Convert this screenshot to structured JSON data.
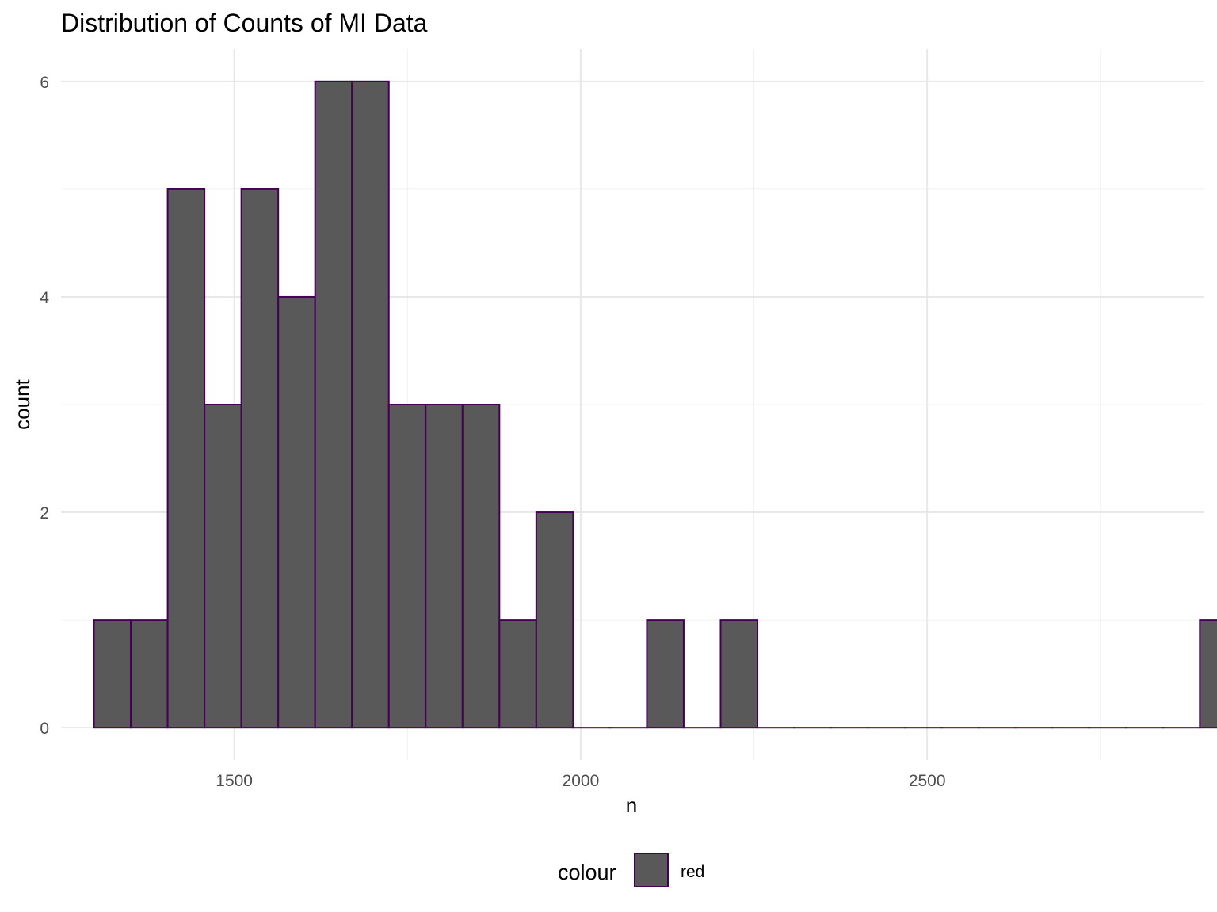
{
  "chart_data": {
    "type": "bar",
    "title": "Distribution of Counts of MI Data",
    "xlabel": "n",
    "ylabel": "count",
    "xlim": [
      1250,
      2900
    ],
    "ylim": [
      -0.3,
      6.3
    ],
    "x_ticks": [
      1500,
      2000,
      2500
    ],
    "y_ticks": [
      0,
      2,
      4,
      6
    ],
    "grid": true,
    "bin_width": 53.2,
    "bins_start": 1297.5,
    "counts": [
      1,
      1,
      5,
      3,
      5,
      4,
      6,
      6,
      3,
      3,
      3,
      1,
      2,
      0,
      0,
      1,
      0,
      1,
      0,
      0,
      0,
      0,
      0,
      0,
      0,
      0,
      0,
      0,
      0,
      0,
      1
    ],
    "fill_color": "#595959",
    "outline_color": "#440154",
    "legend": {
      "title": "colour",
      "position": "bottom",
      "entries": [
        {
          "label": "red",
          "fill": "#595959",
          "outline": "#440154"
        }
      ]
    }
  }
}
